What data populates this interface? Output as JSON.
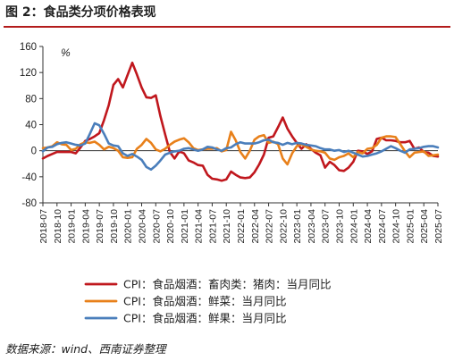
{
  "figure": {
    "title": "图 2：食品类分项价格表现",
    "source": "数据来源：wind、西南证券整理"
  },
  "chart_data": {
    "type": "line",
    "unit_label": "%",
    "ylim": [
      -80,
      160
    ],
    "yticks": [
      -80,
      -40,
      0,
      40,
      80,
      120,
      160
    ],
    "xlim": [
      "2018-07",
      "2025-07"
    ],
    "xticks": [
      "2018-07",
      "2018-10",
      "2019-01",
      "2019-04",
      "2019-07",
      "2019-10",
      "2020-01",
      "2020-04",
      "2020-07",
      "2020-10",
      "2021-01",
      "2021-04",
      "2021-07",
      "2021-10",
      "2022-01",
      "2022-04",
      "2022-07",
      "2022-10",
      "2023-01",
      "2023-04",
      "2023-07",
      "2023-10",
      "2024-01",
      "2024-04",
      "2024-07",
      "2024-10",
      "2025-01",
      "2025-04",
      "2025-07"
    ],
    "legend_position": "bottom",
    "series": [
      {
        "name": "CPI：食品烟酒：畜肉类：猪肉：当月同比",
        "color": "#c0171d",
        "points": [
          [
            "2018-07",
            -12
          ],
          [
            "2018-08",
            -8
          ],
          [
            "2018-09",
            -5
          ],
          [
            "2018-10",
            -2
          ],
          [
            "2018-11",
            -2
          ],
          [
            "2018-12",
            -2
          ],
          [
            "2019-01",
            -2
          ],
          [
            "2019-02",
            -4
          ],
          [
            "2019-03",
            5
          ],
          [
            "2019-04",
            15
          ],
          [
            "2019-05",
            18
          ],
          [
            "2019-06",
            22
          ],
          [
            "2019-07",
            27
          ],
          [
            "2019-08",
            47
          ],
          [
            "2019-09",
            70
          ],
          [
            "2019-10",
            101
          ],
          [
            "2019-11",
            110
          ],
          [
            "2019-12",
            97
          ],
          [
            "2020-01",
            116
          ],
          [
            "2020-02",
            135
          ],
          [
            "2020-03",
            117
          ],
          [
            "2020-04",
            97
          ],
          [
            "2020-05",
            82
          ],
          [
            "2020-06",
            81
          ],
          [
            "2020-07",
            85
          ],
          [
            "2020-08",
            53
          ],
          [
            "2020-09",
            25
          ],
          [
            "2020-10",
            -2
          ],
          [
            "2020-11",
            -12
          ],
          [
            "2020-12",
            -1
          ],
          [
            "2021-01",
            -4
          ],
          [
            "2021-02",
            -15
          ],
          [
            "2021-03",
            -18
          ],
          [
            "2021-04",
            -22
          ],
          [
            "2021-05",
            -23
          ],
          [
            "2021-06",
            -37
          ],
          [
            "2021-07",
            -43
          ],
          [
            "2021-08",
            -44
          ],
          [
            "2021-09",
            -46
          ],
          [
            "2021-10",
            -44
          ],
          [
            "2021-11",
            -32
          ],
          [
            "2021-12",
            -37
          ],
          [
            "2022-01",
            -41
          ],
          [
            "2022-02",
            -42
          ],
          [
            "2022-03",
            -41
          ],
          [
            "2022-04",
            -33
          ],
          [
            "2022-05",
            -21
          ],
          [
            "2022-06",
            -6
          ],
          [
            "2022-07",
            20
          ],
          [
            "2022-08",
            22
          ],
          [
            "2022-09",
            36
          ],
          [
            "2022-10",
            51
          ],
          [
            "2022-11",
            34
          ],
          [
            "2022-12",
            22
          ],
          [
            "2023-01",
            12
          ],
          [
            "2023-02",
            3
          ],
          [
            "2023-03",
            10
          ],
          [
            "2023-04",
            3
          ],
          [
            "2023-05",
            -3
          ],
          [
            "2023-06",
            -7
          ],
          [
            "2023-07",
            -26
          ],
          [
            "2023-08",
            -17
          ],
          [
            "2023-09",
            -22
          ],
          [
            "2023-10",
            -30
          ],
          [
            "2023-11",
            -31
          ],
          [
            "2023-12",
            -26
          ],
          [
            "2024-01",
            -17
          ],
          [
            "2024-02",
            0
          ],
          [
            "2024-03",
            -1
          ],
          [
            "2024-04",
            -5
          ],
          [
            "2024-05",
            -1
          ],
          [
            "2024-06",
            18
          ],
          [
            "2024-07",
            20
          ],
          [
            "2024-08",
            16
          ],
          [
            "2024-09",
            16
          ],
          [
            "2024-10",
            15
          ],
          [
            "2024-11",
            13
          ],
          [
            "2024-12",
            13
          ],
          [
            "2025-01",
            15
          ],
          [
            "2025-02",
            3
          ],
          [
            "2025-03",
            5
          ],
          [
            "2025-04",
            -2
          ],
          [
            "2025-05",
            -3
          ],
          [
            "2025-06",
            -8
          ],
          [
            "2025-07",
            -9
          ]
        ]
      },
      {
        "name": "CPI：食品烟酒：鲜菜：当月同比",
        "color": "#e8801a",
        "points": [
          [
            "2018-07",
            4
          ],
          [
            "2018-08",
            5
          ],
          [
            "2018-09",
            7
          ],
          [
            "2018-10",
            13
          ],
          [
            "2018-11",
            10
          ],
          [
            "2018-12",
            9
          ],
          [
            "2019-01",
            1
          ],
          [
            "2019-02",
            3
          ],
          [
            "2019-03",
            10
          ],
          [
            "2019-04",
            13
          ],
          [
            "2019-05",
            12
          ],
          [
            "2019-06",
            14
          ],
          [
            "2019-07",
            9
          ],
          [
            "2019-08",
            2
          ],
          [
            "2019-09",
            6
          ],
          [
            "2019-10",
            4
          ],
          [
            "2019-11",
            0
          ],
          [
            "2019-12",
            -10
          ],
          [
            "2020-01",
            -11
          ],
          [
            "2020-02",
            -10
          ],
          [
            "2020-03",
            3
          ],
          [
            "2020-04",
            9
          ],
          [
            "2020-05",
            18
          ],
          [
            "2020-06",
            12
          ],
          [
            "2020-07",
            2
          ],
          [
            "2020-08",
            -1
          ],
          [
            "2020-09",
            3
          ],
          [
            "2020-10",
            9
          ],
          [
            "2020-11",
            14
          ],
          [
            "2020-12",
            17
          ],
          [
            "2021-01",
            19
          ],
          [
            "2021-02",
            13
          ],
          [
            "2021-03",
            4
          ],
          [
            "2021-04",
            1
          ],
          [
            "2021-05",
            2
          ],
          [
            "2021-06",
            3
          ],
          [
            "2021-07",
            3
          ],
          [
            "2021-08",
            4
          ],
          [
            "2021-09",
            -1
          ],
          [
            "2021-10",
            1
          ],
          [
            "2021-11",
            29
          ],
          [
            "2021-12",
            16
          ],
          [
            "2022-01",
            -2
          ],
          [
            "2022-02",
            -12
          ],
          [
            "2022-03",
            0
          ],
          [
            "2022-04",
            17
          ],
          [
            "2022-05",
            22
          ],
          [
            "2022-06",
            24
          ],
          [
            "2022-07",
            12
          ],
          [
            "2022-08",
            14
          ],
          [
            "2022-09",
            10
          ],
          [
            "2022-10",
            -12
          ],
          [
            "2022-11",
            -21
          ],
          [
            "2022-12",
            -4
          ],
          [
            "2023-01",
            7
          ],
          [
            "2023-02",
            10
          ],
          [
            "2023-03",
            6
          ],
          [
            "2023-04",
            2
          ],
          [
            "2023-05",
            0
          ],
          [
            "2023-06",
            -1
          ],
          [
            "2023-07",
            -3
          ],
          [
            "2023-08",
            -12
          ],
          [
            "2023-09",
            -14
          ],
          [
            "2023-10",
            -10
          ],
          [
            "2023-11",
            -8
          ],
          [
            "2023-12",
            -4
          ],
          [
            "2024-01",
            -10
          ],
          [
            "2024-02",
            -2
          ],
          [
            "2024-03",
            -4
          ],
          [
            "2024-04",
            3
          ],
          [
            "2024-05",
            4
          ],
          [
            "2024-06",
            9
          ],
          [
            "2024-07",
            20
          ],
          [
            "2024-08",
            22
          ],
          [
            "2024-09",
            22
          ],
          [
            "2024-10",
            21
          ],
          [
            "2024-11",
            10
          ],
          [
            "2024-12",
            -1
          ],
          [
            "2025-01",
            -10
          ],
          [
            "2025-02",
            -3
          ],
          [
            "2025-03",
            -2
          ],
          [
            "2025-04",
            -1
          ],
          [
            "2025-05",
            -8
          ],
          [
            "2025-06",
            -7
          ],
          [
            "2025-07",
            -6
          ]
        ]
      },
      {
        "name": "CPI：食品烟酒：鲜果：当月同比",
        "color": "#4a7ebb",
        "points": [
          [
            "2018-07",
            -1
          ],
          [
            "2018-08",
            5
          ],
          [
            "2018-09",
            6
          ],
          [
            "2018-10",
            10
          ],
          [
            "2018-11",
            12
          ],
          [
            "2018-12",
            13
          ],
          [
            "2019-01",
            11
          ],
          [
            "2019-02",
            9
          ],
          [
            "2019-03",
            8
          ],
          [
            "2019-04",
            11
          ],
          [
            "2019-05",
            26
          ],
          [
            "2019-06",
            42
          ],
          [
            "2019-07",
            39
          ],
          [
            "2019-08",
            26
          ],
          [
            "2019-09",
            11
          ],
          [
            "2019-10",
            8
          ],
          [
            "2019-11",
            7
          ],
          [
            "2019-12",
            -4
          ],
          [
            "2020-01",
            -8
          ],
          [
            "2020-02",
            -5
          ],
          [
            "2020-03",
            -9
          ],
          [
            "2020-04",
            -14
          ],
          [
            "2020-05",
            -25
          ],
          [
            "2020-06",
            -29
          ],
          [
            "2020-07",
            -23
          ],
          [
            "2020-08",
            -15
          ],
          [
            "2020-09",
            -6
          ],
          [
            "2020-10",
            -3
          ],
          [
            "2020-11",
            -1
          ],
          [
            "2020-12",
            0
          ],
          [
            "2021-01",
            3
          ],
          [
            "2021-02",
            4
          ],
          [
            "2021-03",
            2
          ],
          [
            "2021-04",
            0
          ],
          [
            "2021-05",
            2
          ],
          [
            "2021-06",
            6
          ],
          [
            "2021-07",
            5
          ],
          [
            "2021-08",
            2
          ],
          [
            "2021-09",
            0
          ],
          [
            "2021-10",
            4
          ],
          [
            "2021-11",
            5
          ],
          [
            "2021-12",
            10
          ],
          [
            "2022-01",
            13
          ],
          [
            "2022-02",
            11
          ],
          [
            "2022-03",
            11
          ],
          [
            "2022-04",
            11
          ],
          [
            "2022-05",
            13
          ],
          [
            "2022-06",
            16
          ],
          [
            "2022-07",
            17
          ],
          [
            "2022-08",
            13
          ],
          [
            "2022-09",
            12
          ],
          [
            "2022-10",
            9
          ],
          [
            "2022-11",
            12
          ],
          [
            "2022-12",
            10
          ],
          [
            "2023-01",
            12
          ],
          [
            "2023-02",
            11
          ],
          [
            "2023-03",
            9
          ],
          [
            "2023-04",
            8
          ],
          [
            "2023-05",
            7
          ],
          [
            "2023-06",
            4
          ],
          [
            "2023-07",
            2
          ],
          [
            "2023-08",
            2
          ],
          [
            "2023-09",
            0
          ],
          [
            "2023-10",
            1
          ],
          [
            "2023-11",
            -2
          ],
          [
            "2023-12",
            0
          ],
          [
            "2024-01",
            -3
          ],
          [
            "2024-02",
            -6
          ],
          [
            "2024-03",
            -9
          ],
          [
            "2024-04",
            -8
          ],
          [
            "2024-05",
            -6
          ],
          [
            "2024-06",
            -4
          ],
          [
            "2024-07",
            -1
          ],
          [
            "2024-08",
            3
          ],
          [
            "2024-09",
            7
          ],
          [
            "2024-10",
            4
          ],
          [
            "2024-11",
            0
          ],
          [
            "2024-12",
            -3
          ],
          [
            "2025-01",
            2
          ],
          [
            "2025-02",
            3
          ],
          [
            "2025-03",
            4
          ],
          [
            "2025-04",
            6
          ],
          [
            "2025-05",
            7
          ],
          [
            "2025-06",
            7
          ],
          [
            "2025-07",
            5
          ]
        ]
      }
    ]
  }
}
